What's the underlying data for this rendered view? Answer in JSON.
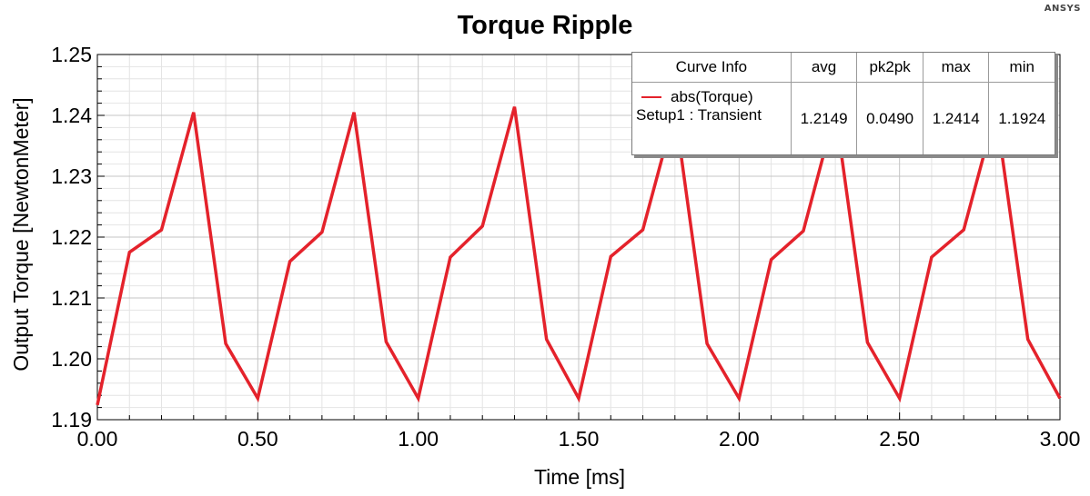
{
  "brand": "ANSYS",
  "chart_data": {
    "type": "line",
    "title": "Torque Ripple",
    "xlabel": "Time [ms]",
    "ylabel": "Output Torque [NewtonMeter]",
    "xlim": [
      0,
      3
    ],
    "ylim": [
      1.19,
      1.25
    ],
    "xticks": [
      "0.00",
      "0.50",
      "1.00",
      "1.50",
      "2.00",
      "2.50",
      "3.00"
    ],
    "yticks": [
      "1.19",
      "1.20",
      "1.21",
      "1.22",
      "1.23",
      "1.24",
      "1.25"
    ],
    "grid": true,
    "legend_position": "top-right",
    "series": [
      {
        "name": "abs(Torque)",
        "color": "#e4222b",
        "x": [
          0.0,
          0.1,
          0.2,
          0.3,
          0.4,
          0.5,
          0.6,
          0.7,
          0.8,
          0.9,
          1.0,
          1.1,
          1.2,
          1.3,
          1.4,
          1.5,
          1.6,
          1.7,
          1.8,
          1.9,
          2.0,
          2.1,
          2.2,
          2.3,
          2.4,
          2.5,
          2.6,
          2.7,
          2.8,
          2.9,
          3.0
        ],
        "y": [
          1.1924,
          1.2175,
          1.2212,
          1.2405,
          1.2025,
          1.1935,
          1.216,
          1.2208,
          1.2405,
          1.2028,
          1.1935,
          1.2167,
          1.2218,
          1.2414,
          1.2032,
          1.1935,
          1.2168,
          1.2212,
          1.2408,
          1.2025,
          1.1935,
          1.2163,
          1.221,
          1.2408,
          1.2027,
          1.1935,
          1.2167,
          1.2212,
          1.2408,
          1.2032,
          1.1935
        ]
      }
    ]
  },
  "legend": {
    "headers": [
      "Curve Info",
      "avg",
      "pk2pk",
      "max",
      "min"
    ],
    "curve_name": "abs(Torque)",
    "curve_source": "Setup1 : Transient",
    "avg": "1.2149",
    "pk2pk": "0.0490",
    "max": "1.2414",
    "min": "1.1924"
  }
}
